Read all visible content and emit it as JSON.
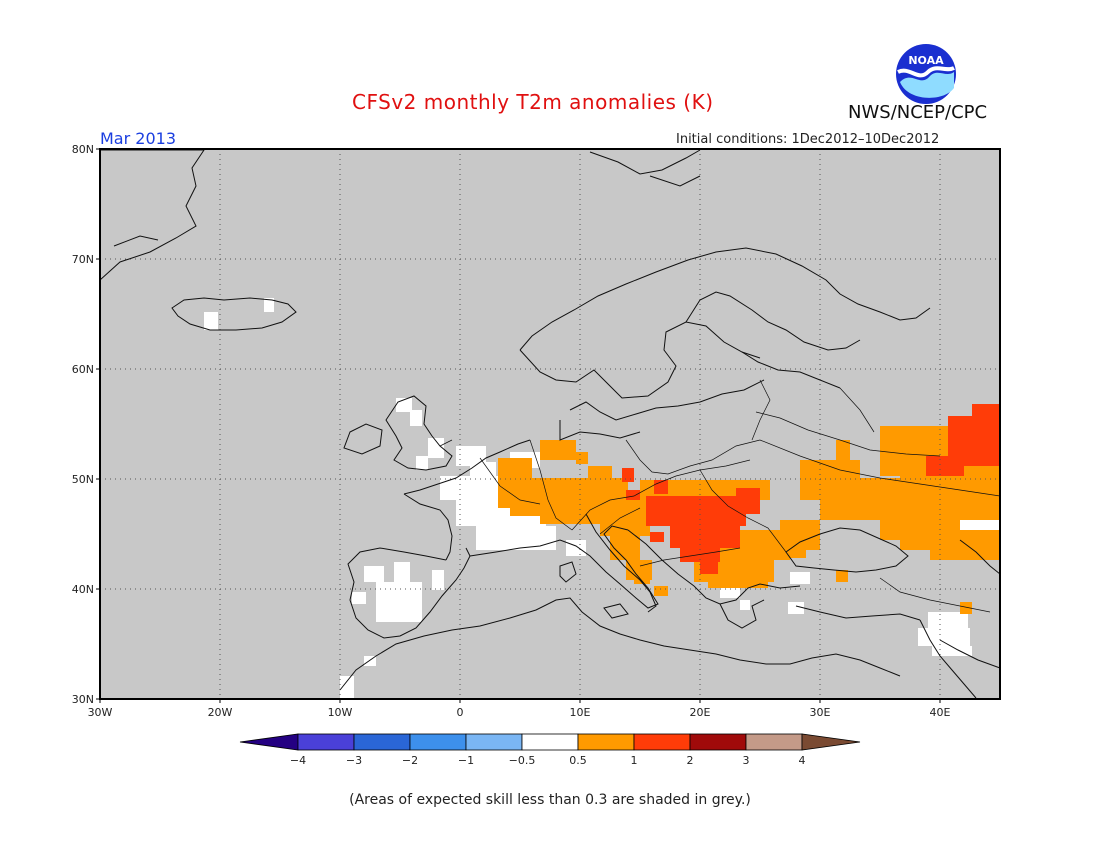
{
  "header": {
    "title": "CFSv2 monthly T2m anomalies (K)",
    "month": "Mar 2013",
    "initial_conditions": "Initial conditions: 1Dec2012–10Dec2012",
    "agency": "NWS/NCEP/CPC",
    "logo_text": "NOAA"
  },
  "map": {
    "lat_labels": [
      "80N",
      "70N",
      "60N",
      "50N",
      "40N",
      "30N"
    ],
    "lon_labels": [
      "30W",
      "20W",
      "10W",
      "0",
      "10E",
      "20E",
      "30E",
      "40E"
    ],
    "background_color": "#c8c8c8",
    "grid": true
  },
  "colorbar": {
    "tick_labels": [
      "−4",
      "−3",
      "−2",
      "−1",
      "−0.5",
      "0.5",
      "1",
      "2",
      "3",
      "4"
    ],
    "colors": [
      "#240082",
      "#4a40d8",
      "#2a66d6",
      "#3d90ec",
      "#7ab6f4",
      "#ffffff",
      "#ff9a00",
      "#ff3c08",
      "#a00a0a",
      "#c49a88",
      "#7a4a32"
    ]
  },
  "anomaly_colors": {
    "neutral": "#ffffff",
    "warm1": "#ff9a00",
    "warm2": "#ff3c08"
  },
  "footer": {
    "skill_note": "(Areas of expected skill less than 0.3 are shaded in grey.)"
  }
}
